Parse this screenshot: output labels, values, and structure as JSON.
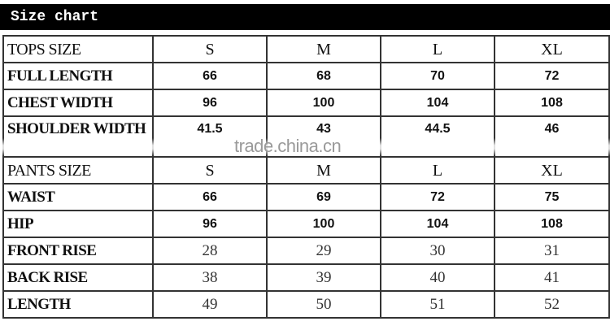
{
  "title": "Size chart",
  "watermark": "trade.china.cn",
  "tops": {
    "header": [
      "TOPS SIZE",
      "S",
      "M",
      "L",
      "XL"
    ],
    "rows": [
      {
        "label": "FULL LENGTH",
        "values": [
          "66",
          "68",
          "70",
          "72"
        ]
      },
      {
        "label": "CHEST WIDTH",
        "values": [
          "96",
          "100",
          "104",
          "108"
        ]
      },
      {
        "label": "SHOULDER WIDTH",
        "values": [
          "41.5",
          "43",
          "44.5",
          "46"
        ]
      }
    ]
  },
  "pants": {
    "header": [
      "PANTS SIZE",
      "S",
      "M",
      "L",
      "XL"
    ],
    "rows": [
      {
        "label": "WAIST",
        "values": [
          "66",
          "69",
          "72",
          "75"
        ]
      },
      {
        "label": "HIP",
        "values": [
          "96",
          "100",
          "104",
          "108"
        ]
      },
      {
        "label": "FRONT RISE",
        "values": [
          "28",
          "29",
          "30",
          "31"
        ]
      },
      {
        "label": "BACK RISE",
        "values": [
          "38",
          "39",
          "40",
          "41"
        ]
      },
      {
        "label": "LENGTH",
        "values": [
          "49",
          "50",
          "51",
          "52"
        ]
      }
    ]
  }
}
